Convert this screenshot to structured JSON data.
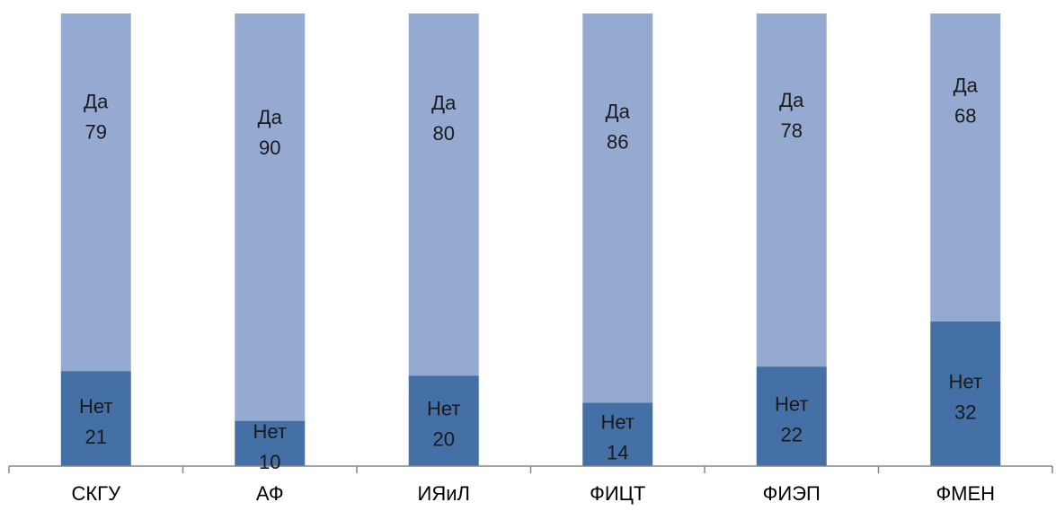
{
  "chart_data": {
    "type": "bar",
    "stacked": true,
    "categories": [
      "СКГУ",
      "АФ",
      "ИЯиЛ",
      "ФИЦТ",
      "ФИЭП",
      "ФМЕН"
    ],
    "series": [
      {
        "name": "Нет",
        "values": [
          21,
          10,
          20,
          14,
          22,
          32
        ],
        "color": "#4470a5"
      },
      {
        "name": "Да",
        "values": [
          79,
          90,
          80,
          86,
          78,
          68
        ],
        "color": "#95aad1"
      }
    ],
    "ylim": [
      0,
      100
    ],
    "grid": false,
    "legend": "none"
  }
}
